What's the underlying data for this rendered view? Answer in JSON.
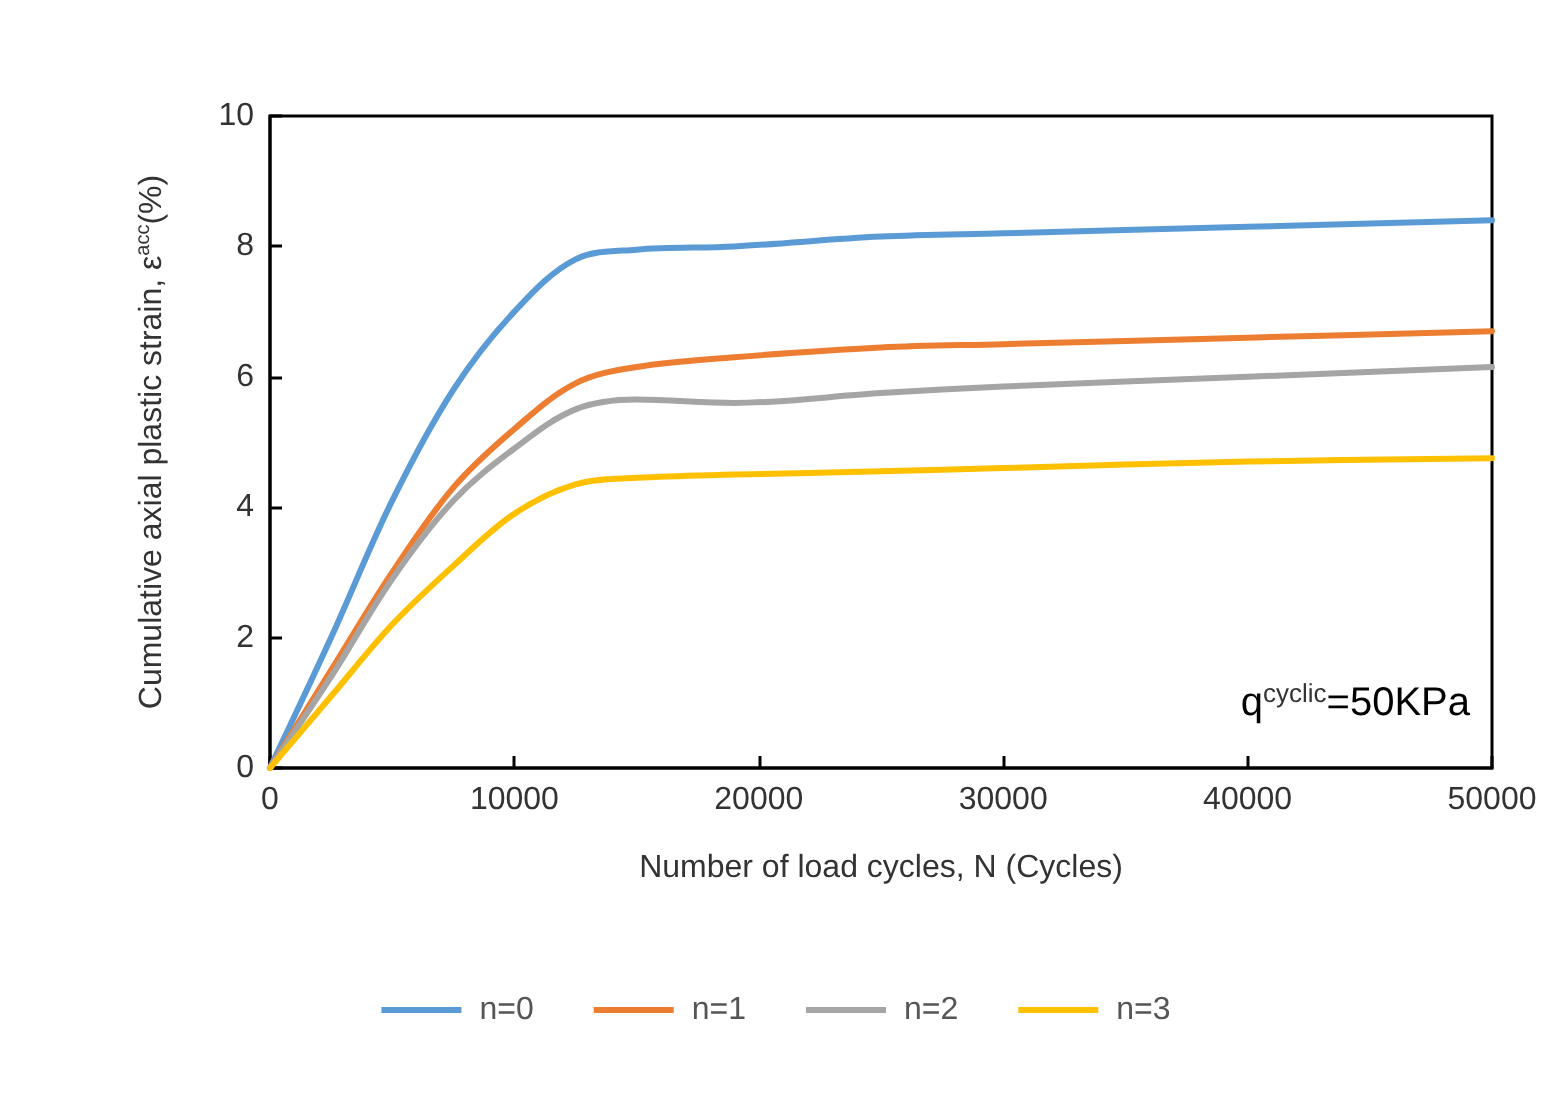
{
  "chart_data": {
    "type": "line",
    "xlabel": "Number of load cycles, N (Cycles)",
    "ylabel": "Cumulative axial plastic strain, ε$^{acc}$(%)",
    "annotations": [
      "q$^{cyclic}$=50KPa"
    ],
    "x": [
      0,
      2500,
      5000,
      7500,
      10000,
      12500,
      15000,
      19000,
      25000,
      30000,
      40000,
      50000
    ],
    "series": [
      {
        "name": "n=0",
        "color": "#5b9bd5",
        "values": [
          0,
          2.0,
          4.1,
          5.8,
          7.0,
          7.8,
          7.95,
          8.0,
          8.15,
          8.2,
          8.3,
          8.4
        ]
      },
      {
        "name": "n=1",
        "color": "#ed7d31",
        "values": [
          0,
          1.5,
          3.0,
          4.3,
          5.2,
          5.9,
          6.15,
          6.3,
          6.45,
          6.5,
          6.6,
          6.7
        ]
      },
      {
        "name": "n=2",
        "color": "#a5a5a5",
        "values": [
          0,
          1.4,
          2.9,
          4.1,
          4.9,
          5.5,
          5.65,
          5.6,
          5.75,
          5.85,
          6.0,
          6.15
        ]
      },
      {
        "name": "n=3",
        "color": "#ffc000",
        "values": [
          0,
          1.1,
          2.2,
          3.1,
          3.9,
          4.35,
          4.45,
          4.5,
          4.55,
          4.6,
          4.7,
          4.75
        ]
      }
    ],
    "xlim": [
      0,
      50000
    ],
    "xticks": [
      0,
      10000,
      20000,
      30000,
      40000,
      50000
    ],
    "ylim": [
      0,
      10
    ],
    "yticks": [
      0,
      2,
      4,
      6,
      8,
      10
    ],
    "legend": "bottom",
    "marker": "none",
    "line_style": "solid"
  }
}
